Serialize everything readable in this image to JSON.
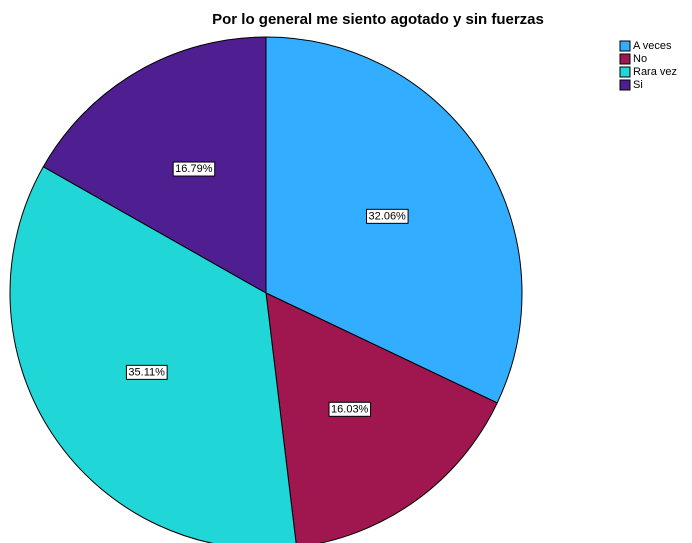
{
  "chart_data": {
    "type": "pie",
    "title": "Por lo general me siento agotado y sin fuerzas",
    "categories": [
      "A veces",
      "No",
      "Rara vez",
      "Si"
    ],
    "values": [
      32.06,
      16.03,
      35.11,
      16.79
    ],
    "value_labels": [
      "32.06%",
      "16.03%",
      "35.11%",
      "16.79%"
    ],
    "colors": [
      "#33adff",
      "#a0174f",
      "#21d6d6",
      "#4f1f91"
    ],
    "legend": "top-right"
  }
}
